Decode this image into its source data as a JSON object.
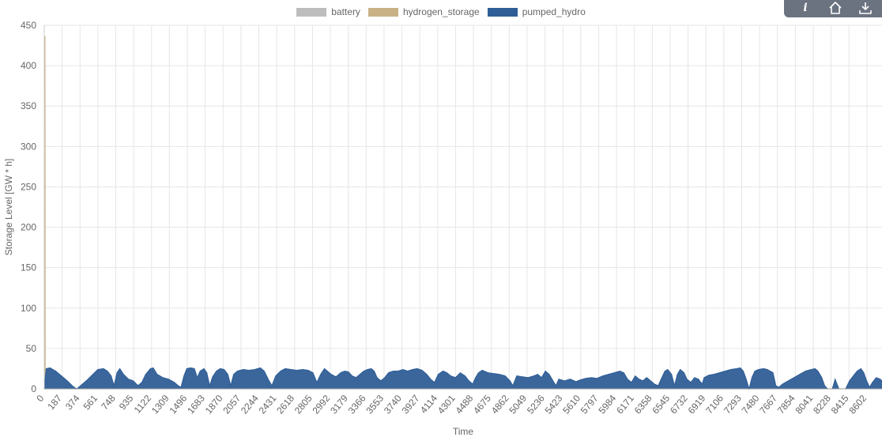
{
  "toolbar": {
    "info_label": "i"
  },
  "colors": {
    "battery": "#bdbdbd",
    "hydrogen_storage": "#c8b285",
    "pumped_hydro": "#2f5e97"
  },
  "chart_data": {
    "type": "area",
    "xlabel": "Time",
    "ylabel": "Storage Level [GW * h]",
    "ylim": [
      0,
      450
    ],
    "xlim": [
      0,
      8760
    ],
    "yticks": [
      0,
      50,
      100,
      150,
      200,
      250,
      300,
      350,
      400,
      450
    ],
    "xticks": [
      0,
      187,
      374,
      561,
      748,
      935,
      1122,
      1309,
      1496,
      1683,
      1870,
      2057,
      2244,
      2431,
      2618,
      2805,
      2992,
      3179,
      3366,
      3553,
      3740,
      3927,
      4114,
      4301,
      4488,
      4675,
      4862,
      5049,
      5236,
      5423,
      5610,
      5797,
      5984,
      6171,
      6358,
      6545,
      6732,
      6919,
      7106,
      7293,
      7480,
      7667,
      7854,
      8041,
      8228,
      8415,
      8602
    ],
    "grid": true,
    "legend_position": "top-center",
    "series": [
      {
        "name": "battery",
        "points": [
          [
            0,
            0
          ],
          [
            8760,
            0
          ]
        ]
      },
      {
        "name": "hydrogen_storage",
        "points": [
          [
            0,
            0
          ],
          [
            3,
            436
          ],
          [
            8,
            436
          ],
          [
            11,
            0
          ],
          [
            8760,
            0
          ]
        ]
      },
      {
        "name": "pumped_hydro",
        "points": [
          [
            0,
            0
          ],
          [
            20,
            25
          ],
          [
            60,
            26
          ],
          [
            120,
            22
          ],
          [
            180,
            16
          ],
          [
            240,
            10
          ],
          [
            300,
            3
          ],
          [
            340,
            0
          ],
          [
            380,
            4
          ],
          [
            440,
            10
          ],
          [
            500,
            17
          ],
          [
            560,
            24
          ],
          [
            620,
            25
          ],
          [
            660,
            22
          ],
          [
            700,
            16
          ],
          [
            730,
            4
          ],
          [
            760,
            20
          ],
          [
            790,
            25
          ],
          [
            830,
            18
          ],
          [
            880,
            12
          ],
          [
            930,
            10
          ],
          [
            980,
            4
          ],
          [
            1020,
            8
          ],
          [
            1060,
            18
          ],
          [
            1110,
            25
          ],
          [
            1140,
            26
          ],
          [
            1180,
            18
          ],
          [
            1240,
            14
          ],
          [
            1300,
            12
          ],
          [
            1360,
            8
          ],
          [
            1400,
            4
          ],
          [
            1430,
            2
          ],
          [
            1460,
            16
          ],
          [
            1490,
            25
          ],
          [
            1530,
            26
          ],
          [
            1570,
            25
          ],
          [
            1600,
            14
          ],
          [
            1630,
            22
          ],
          [
            1670,
            25
          ],
          [
            1700,
            20
          ],
          [
            1730,
            4
          ],
          [
            1760,
            15
          ],
          [
            1800,
            22
          ],
          [
            1840,
            25
          ],
          [
            1880,
            24
          ],
          [
            1920,
            18
          ],
          [
            1950,
            4
          ],
          [
            1980,
            18
          ],
          [
            2020,
            22
          ],
          [
            2080,
            24
          ],
          [
            2140,
            23
          ],
          [
            2200,
            24
          ],
          [
            2260,
            26
          ],
          [
            2300,
            22
          ],
          [
            2350,
            10
          ],
          [
            2380,
            4
          ],
          [
            2420,
            16
          ],
          [
            2470,
            22
          ],
          [
            2520,
            25
          ],
          [
            2580,
            24
          ],
          [
            2640,
            23
          ],
          [
            2700,
            24
          ],
          [
            2760,
            23
          ],
          [
            2810,
            20
          ],
          [
            2850,
            8
          ],
          [
            2890,
            18
          ],
          [
            2930,
            25
          ],
          [
            2960,
            22
          ],
          [
            3000,
            18
          ],
          [
            3050,
            15
          ],
          [
            3100,
            20
          ],
          [
            3140,
            22
          ],
          [
            3180,
            21
          ],
          [
            3220,
            16
          ],
          [
            3260,
            14
          ],
          [
            3300,
            18
          ],
          [
            3340,
            22
          ],
          [
            3380,
            24
          ],
          [
            3420,
            25
          ],
          [
            3450,
            22
          ],
          [
            3480,
            14
          ],
          [
            3520,
            10
          ],
          [
            3560,
            14
          ],
          [
            3600,
            20
          ],
          [
            3650,
            22
          ],
          [
            3700,
            22
          ],
          [
            3750,
            24
          ],
          [
            3800,
            22
          ],
          [
            3850,
            24
          ],
          [
            3900,
            25
          ],
          [
            3950,
            23
          ],
          [
            4000,
            18
          ],
          [
            4040,
            12
          ],
          [
            4080,
            8
          ],
          [
            4120,
            18
          ],
          [
            4170,
            22
          ],
          [
            4210,
            20
          ],
          [
            4250,
            16
          ],
          [
            4300,
            14
          ],
          [
            4350,
            20
          ],
          [
            4400,
            16
          ],
          [
            4440,
            10
          ],
          [
            4480,
            6
          ],
          [
            4510,
            14
          ],
          [
            4540,
            20
          ],
          [
            4580,
            23
          ],
          [
            4640,
            20
          ],
          [
            4700,
            19
          ],
          [
            4760,
            18
          ],
          [
            4820,
            16
          ],
          [
            4870,
            10
          ],
          [
            4900,
            4
          ],
          [
            4940,
            16
          ],
          [
            5000,
            15
          ],
          [
            5060,
            14
          ],
          [
            5120,
            16
          ],
          [
            5160,
            18
          ],
          [
            5200,
            14
          ],
          [
            5240,
            22
          ],
          [
            5280,
            18
          ],
          [
            5320,
            10
          ],
          [
            5350,
            4
          ],
          [
            5380,
            12
          ],
          [
            5440,
            10
          ],
          [
            5500,
            12
          ],
          [
            5560,
            9
          ],
          [
            5600,
            11
          ],
          [
            5660,
            13
          ],
          [
            5720,
            14
          ],
          [
            5780,
            13
          ],
          [
            5840,
            16
          ],
          [
            5900,
            18
          ],
          [
            5960,
            20
          ],
          [
            6020,
            22
          ],
          [
            6060,
            20
          ],
          [
            6100,
            12
          ],
          [
            6140,
            8
          ],
          [
            6180,
            16
          ],
          [
            6220,
            12
          ],
          [
            6260,
            10
          ],
          [
            6300,
            14
          ],
          [
            6340,
            10
          ],
          [
            6380,
            6
          ],
          [
            6420,
            4
          ],
          [
            6450,
            12
          ],
          [
            6490,
            22
          ],
          [
            6520,
            24
          ],
          [
            6560,
            18
          ],
          [
            6590,
            4
          ],
          [
            6620,
            18
          ],
          [
            6650,
            24
          ],
          [
            6690,
            20
          ],
          [
            6720,
            12
          ],
          [
            6760,
            8
          ],
          [
            6800,
            14
          ],
          [
            6840,
            12
          ],
          [
            6880,
            6
          ],
          [
            6900,
            14
          ],
          [
            6950,
            17
          ],
          [
            7000,
            18
          ],
          [
            7060,
            20
          ],
          [
            7120,
            22
          ],
          [
            7180,
            24
          ],
          [
            7240,
            25
          ],
          [
            7280,
            26
          ],
          [
            7310,
            22
          ],
          [
            7340,
            12
          ],
          [
            7370,
            0
          ],
          [
            7400,
            14
          ],
          [
            7430,
            22
          ],
          [
            7470,
            24
          ],
          [
            7520,
            25
          ],
          [
            7560,
            24
          ],
          [
            7620,
            20
          ],
          [
            7650,
            4
          ],
          [
            7680,
            2
          ],
          [
            7720,
            6
          ],
          [
            7780,
            10
          ],
          [
            7840,
            14
          ],
          [
            7900,
            18
          ],
          [
            7960,
            22
          ],
          [
            8020,
            24
          ],
          [
            8060,
            25
          ],
          [
            8090,
            22
          ],
          [
            8130,
            14
          ],
          [
            8160,
            4
          ],
          [
            8190,
            0
          ],
          [
            8240,
            0
          ],
          [
            8270,
            12
          ],
          [
            8290,
            6
          ],
          [
            8310,
            0
          ],
          [
            8380,
            0
          ],
          [
            8420,
            10
          ],
          [
            8460,
            16
          ],
          [
            8500,
            22
          ],
          [
            8540,
            25
          ],
          [
            8570,
            20
          ],
          [
            8600,
            10
          ],
          [
            8630,
            2
          ],
          [
            8660,
            8
          ],
          [
            8700,
            14
          ],
          [
            8740,
            12
          ],
          [
            8780,
            8
          ],
          [
            8820,
            4
          ],
          [
            8860,
            0
          ],
          [
            9000,
            0
          ]
        ]
      }
    ]
  }
}
